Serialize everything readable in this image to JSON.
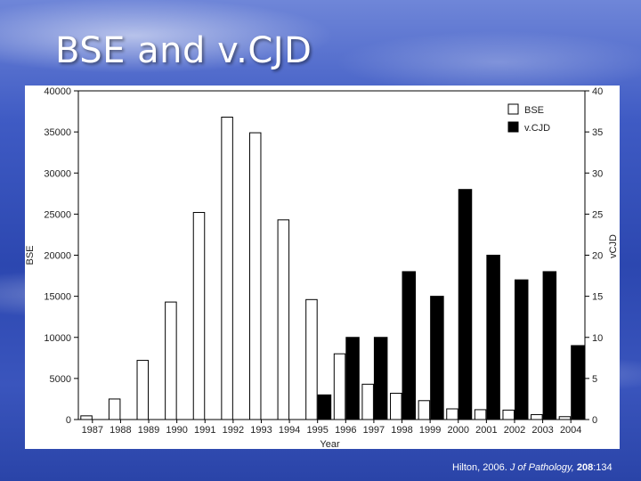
{
  "slide": {
    "title": "BSE and v.CJD"
  },
  "citation": {
    "author_year": "Hilton, 2006.",
    "journal": "J of Pathology,",
    "volume": "208",
    "pages": ":134"
  },
  "chart_data": {
    "type": "bar",
    "title": "",
    "xlabel": "Year",
    "ylabel_left": "BSE",
    "ylabel_right": "vCJD",
    "categories": [
      "1987",
      "1988",
      "1989",
      "1990",
      "1991",
      "1992",
      "1993",
      "1994",
      "1995",
      "1996",
      "1997",
      "1998",
      "1999",
      "2000",
      "2001",
      "2002",
      "2003",
      "2004"
    ],
    "series": [
      {
        "name": "BSE",
        "axis": "left",
        "color": "#ffffff",
        "values": [
          450,
          2500,
          7200,
          14300,
          25200,
          36800,
          34900,
          24300,
          14600,
          8000,
          4300,
          3200,
          2300,
          1300,
          1200,
          1150,
          600,
          350
        ]
      },
      {
        "name": "vCJD",
        "axis": "right",
        "color": "#000000",
        "values": [
          0,
          0,
          0,
          0,
          0,
          0,
          0,
          0,
          3,
          10,
          10,
          18,
          15,
          28,
          20,
          17,
          18,
          9
        ]
      }
    ],
    "ylim_left": [
      0,
      40000
    ],
    "yticks_left": [
      "0",
      "5000",
      "10000",
      "15000",
      "20000",
      "25000",
      "30000",
      "35000",
      "40000"
    ],
    "ylim_right": [
      0,
      40
    ],
    "yticks_right": [
      "0",
      "5",
      "10",
      "15",
      "20",
      "25",
      "30",
      "35",
      "40"
    ],
    "legend": {
      "position": "top-right",
      "entries": [
        "BSE",
        "v.CJD"
      ]
    },
    "grid": false
  }
}
